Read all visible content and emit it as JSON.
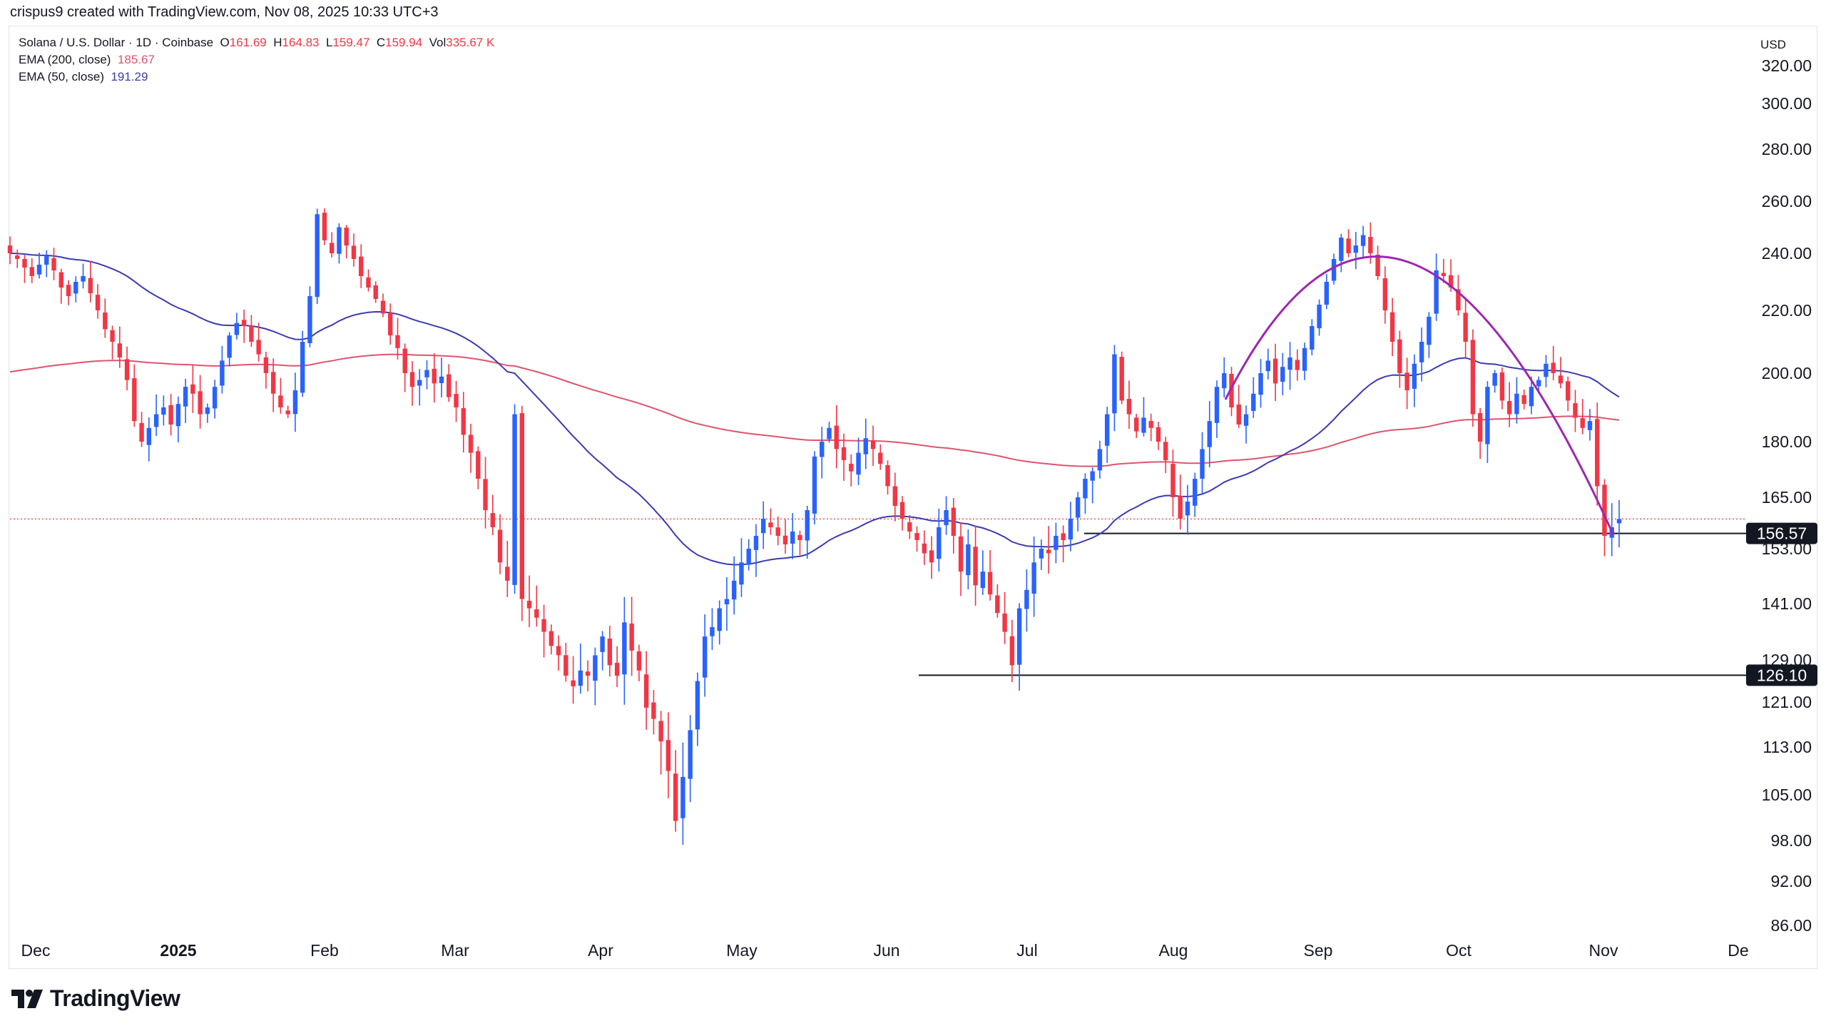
{
  "header": {
    "credit": "crispus9 created with TradingView.com, Nov 08, 2025 10:33 UTC+3"
  },
  "legend": {
    "symbol": "Solana / U.S. Dollar · 1D · Coinbase",
    "o_label": "O",
    "o_value": "161.69",
    "h_label": "H",
    "h_value": "164.83",
    "l_label": "L",
    "l_value": "159.47",
    "c_label": "C",
    "c_value": "159.94",
    "vol_label": "Vol",
    "vol_value": "335.67 K",
    "ema200_label": "EMA (200, close)",
    "ema200_value": "185.67",
    "ema50_label": "EMA (50, close)",
    "ema50_value": "191.29"
  },
  "currency": "USD",
  "brand": "TradingView",
  "colors": {
    "up": "#2962ff",
    "down": "#f23645",
    "ema200": "#e0536d",
    "ema50": "#3c3bb0",
    "arc": "#9c27b0",
    "level": "#131722"
  },
  "chart_data": {
    "type": "candlestick",
    "title": "Solana / U.S. Dollar · 1D · Coinbase",
    "ylim": [
      86,
      320
    ],
    "y_ticks": [
      "86.00",
      "92.00",
      "98.00",
      "105.00",
      "113.00",
      "121.00",
      "129.00",
      "141.00",
      "153.00",
      "165.00",
      "180.00",
      "200.00",
      "220.00",
      "240.00",
      "260.00",
      "280.00",
      "300.00",
      "320.00"
    ],
    "x_ticks": [
      {
        "label": "Dec",
        "bold": false
      },
      {
        "label": "2025",
        "bold": true
      },
      {
        "label": "Feb",
        "bold": false
      },
      {
        "label": "Mar",
        "bold": false
      },
      {
        "label": "Apr",
        "bold": false
      },
      {
        "label": "May",
        "bold": false
      },
      {
        "label": "Jun",
        "bold": false
      },
      {
        "label": "Jul",
        "bold": false
      },
      {
        "label": "Aug",
        "bold": false
      },
      {
        "label": "Sep",
        "bold": false
      },
      {
        "label": "Oct",
        "bold": false
      },
      {
        "label": "Nov",
        "bold": false
      },
      {
        "label": "De",
        "bold": false
      }
    ],
    "close_series": [
      240,
      238,
      235,
      232,
      236,
      239,
      234,
      228,
      225,
      230,
      232,
      226,
      220,
      214,
      210,
      205,
      198,
      186,
      180,
      184,
      188,
      190,
      185,
      191,
      196,
      194,
      188,
      190,
      196,
      204,
      212,
      216,
      215,
      210,
      206,
      200,
      194,
      190,
      188,
      195,
      210,
      225,
      255,
      245,
      240,
      250,
      243,
      238,
      232,
      228,
      224,
      219,
      212,
      208,
      200,
      196,
      198,
      201,
      197,
      199,
      193,
      190,
      182,
      177,
      170,
      162,
      158,
      150,
      146,
      188,
      142,
      140,
      138,
      135,
      132,
      130,
      126,
      124,
      127,
      126,
      130,
      134,
      128,
      126,
      137,
      131,
      127,
      120,
      118,
      114,
      109,
      101,
      108,
      116,
      125,
      134,
      136,
      140,
      142,
      146,
      150,
      153,
      156,
      160,
      158,
      156,
      154,
      157,
      155,
      162,
      176,
      180,
      184,
      178,
      175,
      172,
      177,
      181,
      178,
      174,
      168,
      163,
      160,
      157,
      155,
      152,
      150,
      158,
      162,
      156,
      148,
      154,
      145,
      148,
      143,
      139,
      135,
      128,
      140,
      144,
      150,
      153,
      152,
      156,
      155,
      160,
      165,
      170,
      172,
      178,
      188,
      206,
      192,
      188,
      183,
      187,
      184,
      180,
      175,
      165,
      160,
      164,
      170,
      178,
      186,
      196,
      200,
      190,
      185,
      188,
      194,
      200,
      204,
      197,
      202,
      205,
      201,
      208,
      215,
      222,
      230,
      238,
      246,
      240,
      243,
      247,
      240,
      232,
      220,
      210,
      200,
      195,
      203,
      210,
      218,
      234,
      232,
      228,
      220,
      210,
      188,
      180,
      196,
      200,
      192,
      188,
      194,
      191,
      196,
      198,
      203,
      200,
      197,
      192,
      187,
      184,
      186,
      168,
      156,
      158,
      159.94
    ],
    "ema200_end": 185.67,
    "ema50_end": 191.29,
    "last_price": 159.94,
    "levels": [
      {
        "value": 156.57,
        "label": "156.57"
      },
      {
        "value": 126.1,
        "label": "126.10"
      }
    ],
    "annotation": "rounded top (arc) drawn over Aug–Nov"
  }
}
